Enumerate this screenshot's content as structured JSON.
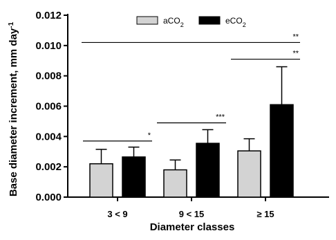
{
  "chart_data": {
    "type": "bar",
    "xlabel": "Diameter classes",
    "ylabel": "Base diameter increment, mm day",
    "ylabel_sup": "-1",
    "ylim": [
      0,
      0.012
    ],
    "yticks": [
      "0.000",
      "0.002",
      "0.004",
      "0.006",
      "0.008",
      "0.010",
      "0.012"
    ],
    "categories": [
      "3 < 9",
      "9 < 15",
      "≥ 15"
    ],
    "series": [
      {
        "name": "aCO",
        "sub": "2",
        "color": "#d3d3d3",
        "values": [
          0.0022,
          0.0018,
          0.00305
        ],
        "errors": [
          0.00095,
          0.00065,
          0.0008
        ]
      },
      {
        "name": "eCO",
        "sub": "2",
        "color": "#000000",
        "values": [
          0.00265,
          0.00355,
          0.0061
        ],
        "errors": [
          0.00065,
          0.0009,
          0.0025
        ]
      }
    ],
    "significance": [
      {
        "label": "*",
        "from": 0,
        "to": 0,
        "y": 0.0037
      },
      {
        "label": "***",
        "from": 1,
        "to": 1,
        "y": 0.0049
      },
      {
        "label": "**",
        "from": 2,
        "to": 2,
        "y": 0.0091
      },
      {
        "label": "**",
        "from": 0,
        "to": 2,
        "y": 0.0102
      }
    ],
    "legend": "top-center",
    "grid": false
  }
}
